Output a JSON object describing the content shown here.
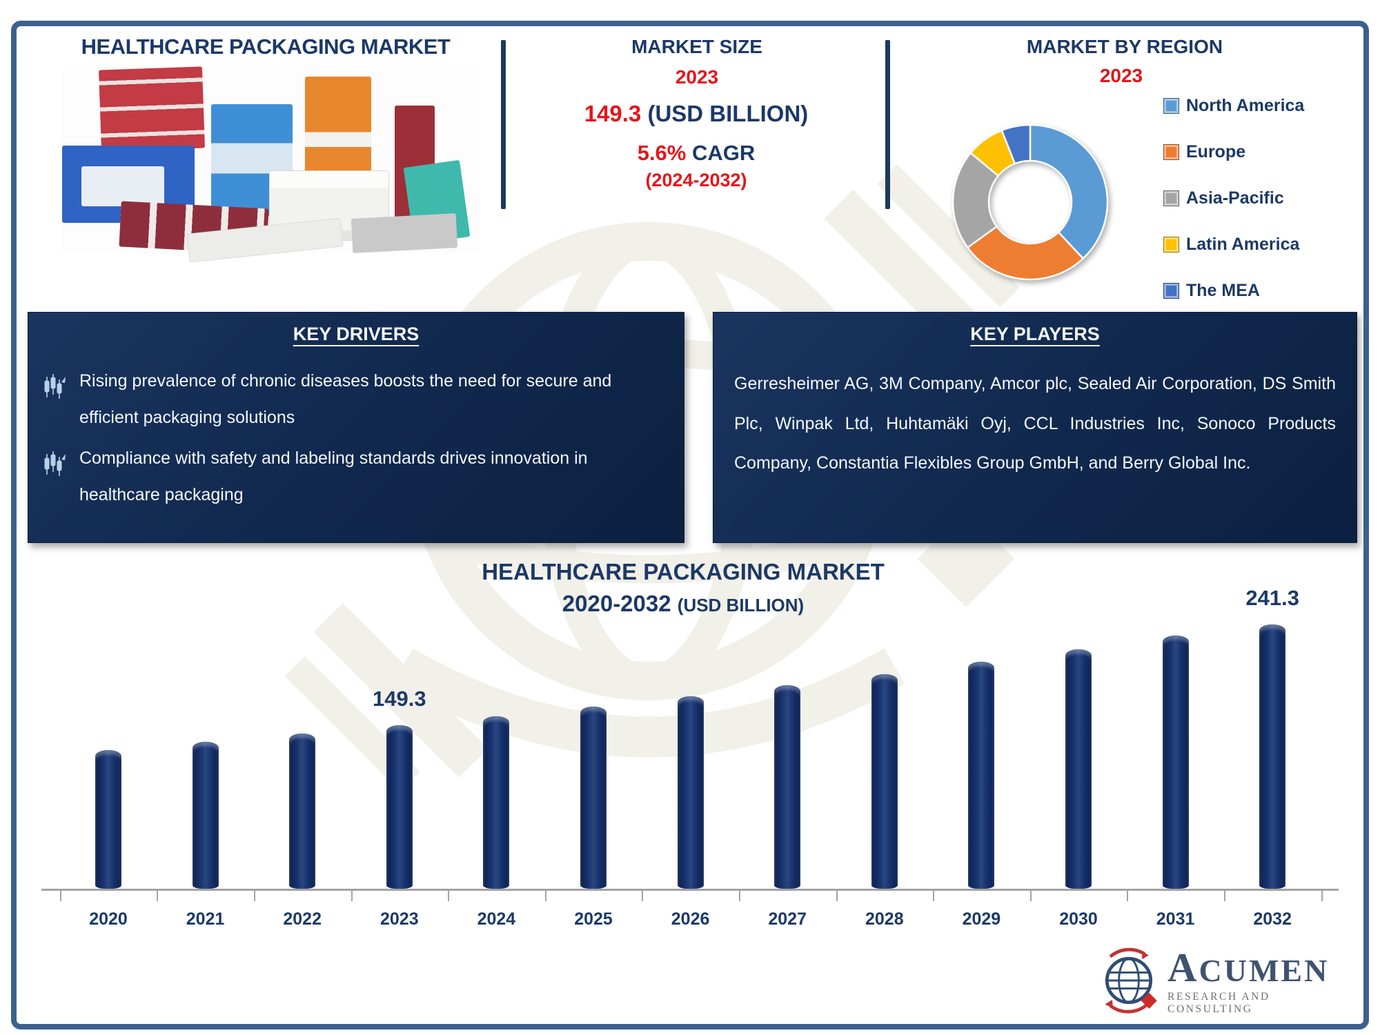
{
  "header": {
    "title": "HEALTHCARE PACKAGING MARKET"
  },
  "market_size": {
    "heading": "MARKET SIZE",
    "year": "2023",
    "value": "149.3",
    "value_unit": "(USD BILLION)",
    "cagr_value": "5.6%",
    "cagr_label": "CAGR",
    "cagr_period": "(2024-2032)"
  },
  "market_by_region": {
    "heading": "MARKET BY REGION",
    "year": "2023"
  },
  "key_drivers": {
    "heading": "KEY DRIVERS",
    "items": [
      "Rising prevalence of chronic diseases boosts the need for secure and efficient packaging solutions",
      "Compliance with safety and labeling standards drives innovation in healthcare packaging"
    ]
  },
  "key_players": {
    "heading": "KEY PLAYERS",
    "text": "Gerresheimer AG, 3M Company, Amcor plc, Sealed Air Corporation, DS Smith Plc, Winpak Ltd, Huhtamäki Oyj, CCL Industries Inc, Sonoco Products Company, Constantia Flexibles Group GmbH, and Berry Global Inc."
  },
  "bar_chart_titles": {
    "line1": "HEALTHCARE PACKAGING MARKET",
    "line2_range": "2020-2032",
    "line2_unit": "(USD BILLION)"
  },
  "logo": {
    "name": "ACUMEN",
    "tagline": "RESEARCH AND CONSULTING"
  },
  "icons": {
    "bullet": "growth-chart-icon",
    "logo": "globe-icon"
  },
  "colors": {
    "navy_text": "#1c3966",
    "red_accent": "#e4151b",
    "frame_border": "#3c618f",
    "box_background": "#122a50",
    "bar_fill": "#16316e",
    "axis_gray": "#a3a3a3"
  },
  "chart_data": [
    {
      "type": "pie",
      "donut": true,
      "title": "MARKET BY REGION 2023",
      "labels": [
        "North America",
        "Europe",
        "Asia-Pacific",
        "Latin America",
        "The MEA"
      ],
      "values": [
        38,
        27,
        21,
        8,
        6
      ],
      "values_note": "percent share estimated from slice angles; no numeric labels shown",
      "colors": [
        "#5b9bd5",
        "#ed7d31",
        "#a5a5a5",
        "#ffc000",
        "#4472c4"
      ],
      "legend_position": "right"
    },
    {
      "type": "bar",
      "title": "HEALTHCARE PACKAGING MARKET 2020-2032 (USD BILLION)",
      "categories": [
        "2020",
        "2021",
        "2022",
        "2023",
        "2024",
        "2025",
        "2026",
        "2027",
        "2028",
        "2029",
        "2030",
        "2031",
        "2032"
      ],
      "values": [
        126.9,
        134.0,
        141.5,
        149.3,
        157.7,
        166.5,
        175.8,
        185.7,
        196.1,
        207.1,
        218.7,
        230.9,
        241.3
      ],
      "values_note": "only 2023 and 2032 are labeled; other values estimated from bar heights / 5.6% CAGR",
      "data_labels": [
        {
          "category": "2023",
          "text": "149.3"
        },
        {
          "category": "2032",
          "text": "241.3"
        }
      ],
      "xlabel": "",
      "ylabel": "",
      "ylim": [
        0,
        260
      ],
      "grid": false
    }
  ]
}
